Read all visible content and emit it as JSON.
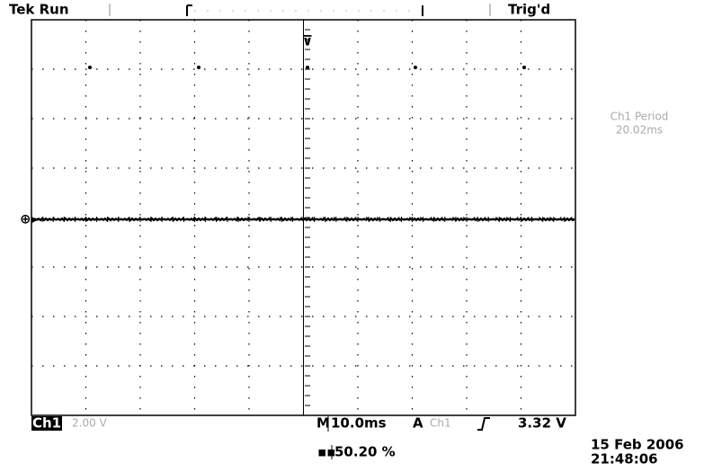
{
  "header": {
    "status": "Tek Run",
    "trigger_state": "Trig'd"
  },
  "measurement": {
    "label": "Ch1 Period",
    "value": "20.02ms"
  },
  "footer": {
    "channel": "Ch1",
    "scale": "2.00 V",
    "timebase_prefix": "M",
    "timebase": "10.0ms",
    "trigger_mode": "A",
    "trigger_source": "Ch1",
    "trigger_level": "3.32 V",
    "position": "50.20 %",
    "date": "15 Feb 2006",
    "time": "21:48:06"
  }
}
